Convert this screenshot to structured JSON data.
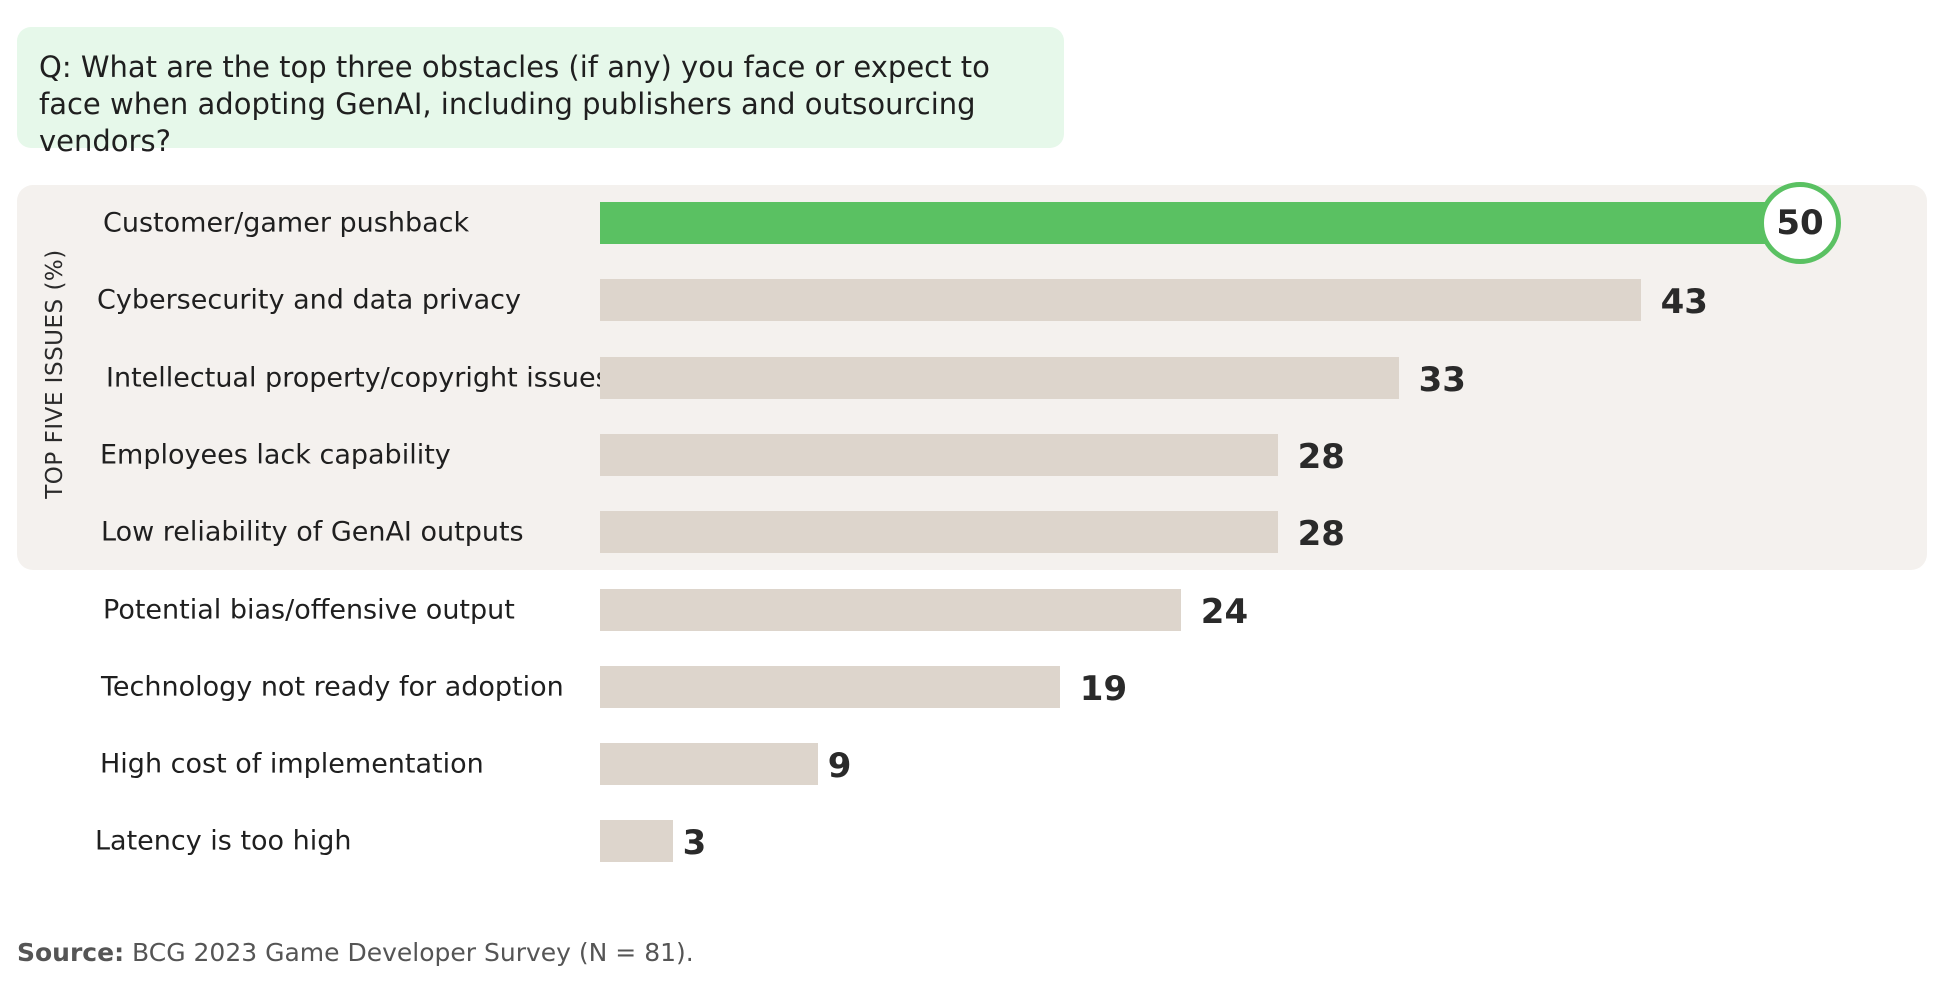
{
  "question": "Q: What are the top three obstacles (if any) you face or expect to face when adopting GenAI, including publishers and outsourcing vendors?",
  "source": {
    "label": "Source:",
    "text": " BCG 2023 Game Developer Survey (N = 81)."
  },
  "colors": {
    "highlight": "#5ac162",
    "bar": "#ddd5cc",
    "panel": "#f4f1ee",
    "question_bg": "#e6f8ea"
  },
  "chart_data": {
    "type": "bar",
    "orientation": "horizontal",
    "group_label": "TOP FIVE ISSUES (%)",
    "group_size": 5,
    "highlight_index": 0,
    "categories": [
      "Customer/gamer pushback",
      "Cybersecurity and data privacy",
      "Intellectual property/copyright issues",
      "Employees lack capability",
      "Low reliability of GenAI outputs",
      "Potential bias/offensive output",
      "Technology not ready for adoption",
      "High cost of implementation",
      "Latency is too high"
    ],
    "values": [
      50,
      43,
      33,
      28,
      28,
      24,
      19,
      9,
      3
    ],
    "value_labels": [
      "50",
      "43",
      "33",
      "28",
      "28",
      "24",
      "19",
      "9",
      "3"
    ],
    "xlim": [
      0,
      50
    ],
    "unit": "%"
  }
}
